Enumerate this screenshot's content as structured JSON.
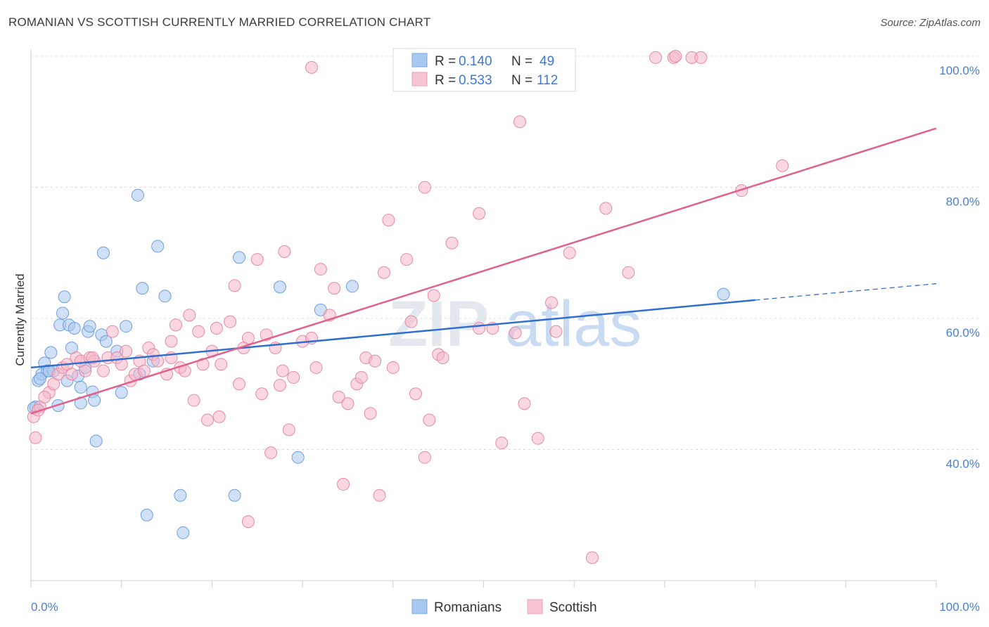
{
  "title": "ROMANIAN VS SCOTTISH CURRENTLY MARRIED CORRELATION CHART",
  "source": "Source: ZipAtlas.com",
  "watermark": {
    "zip": "ZIP",
    "atlas": "atlas"
  },
  "legend_top": {
    "r_label": "R =",
    "n_label": "N =",
    "items": [
      {
        "r": "0.140",
        "n": "49",
        "color": "#a9c8f0"
      },
      {
        "r": "0.533",
        "n": "112",
        "color": "#f7b6c8"
      }
    ]
  },
  "legend_bottom": [
    {
      "label": "Romanians",
      "color": "#a9c8f0"
    },
    {
      "label": "Scottish",
      "color": "#f7b6c8"
    }
  ],
  "chart_data": {
    "type": "scatter",
    "title": "ROMANIAN VS SCOTTISH CURRENTLY MARRIED CORRELATION CHART",
    "xlabel": "",
    "ylabel": "Currently Married",
    "xlim": [
      0,
      100
    ],
    "ylim": [
      20,
      100
    ],
    "x_tick_labels": [
      "0.0%",
      "100.0%"
    ],
    "y_tick_labels": [
      "100.0%",
      "80.0%",
      "60.0%",
      "40.0%"
    ],
    "y_ticks": [
      100,
      80,
      60,
      40
    ],
    "grid": true,
    "legend_position": "top-center",
    "series": [
      {
        "name": "Romanians",
        "color": "#a9c8f0",
        "stroke": "#6f9fdf",
        "trend": {
          "x0": 0,
          "y0": 52.5,
          "x1": 80,
          "y1": 62.8,
          "dash_to_x": 100,
          "dash_to_y": 65.3,
          "color": "#2f6fcf"
        },
        "points": [
          [
            0.5,
            46.5
          ],
          [
            0.8,
            50.5
          ],
          [
            1.2,
            51.5
          ],
          [
            1.5,
            53.2
          ],
          [
            1.8,
            52.0
          ],
          [
            2.2,
            54.8
          ],
          [
            2.5,
            52.0
          ],
          [
            3.0,
            46.7
          ],
          [
            3.2,
            59.0
          ],
          [
            3.5,
            60.8
          ],
          [
            3.7,
            63.3
          ],
          [
            4.2,
            59.0
          ],
          [
            4.0,
            50.5
          ],
          [
            4.5,
            55.5
          ],
          [
            4.8,
            58.5
          ],
          [
            5.2,
            51.2
          ],
          [
            5.5,
            49.5
          ],
          [
            5.5,
            47.1
          ],
          [
            6.0,
            52.5
          ],
          [
            6.3,
            58.0
          ],
          [
            6.5,
            58.8
          ],
          [
            6.8,
            48.8
          ],
          [
            7.0,
            47.5
          ],
          [
            7.2,
            41.3
          ],
          [
            7.8,
            57.5
          ],
          [
            8.0,
            70.0
          ],
          [
            8.3,
            56.5
          ],
          [
            9.5,
            55.0
          ],
          [
            10.0,
            48.7
          ],
          [
            10.5,
            58.8
          ],
          [
            11.8,
            78.8
          ],
          [
            12.0,
            51.5
          ],
          [
            12.3,
            64.6
          ],
          [
            12.8,
            30.0
          ],
          [
            13.5,
            53.5
          ],
          [
            14.0,
            71.0
          ],
          [
            14.8,
            63.4
          ],
          [
            16.5,
            33.0
          ],
          [
            16.8,
            27.3
          ],
          [
            22.5,
            33.0
          ],
          [
            23.0,
            69.3
          ],
          [
            27.5,
            64.8
          ],
          [
            29.5,
            38.8
          ],
          [
            32.0,
            61.3
          ],
          [
            35.5,
            64.9
          ],
          [
            76.5,
            63.7
          ],
          [
            0.3,
            46.3
          ],
          [
            1.0,
            50.8
          ],
          [
            2.0,
            52.0
          ]
        ]
      },
      {
        "name": "Scottish",
        "color": "#f7b6c8",
        "stroke": "#e68aa6",
        "trend": {
          "x0": 0,
          "y0": 45.5,
          "x1": 100,
          "y1": 89.0,
          "color": "#e0618a"
        },
        "points": [
          [
            0.3,
            45.0
          ],
          [
            0.5,
            41.8
          ],
          [
            1.0,
            46.5
          ],
          [
            2.0,
            48.7
          ],
          [
            2.5,
            50.0
          ],
          [
            3.0,
            51.5
          ],
          [
            3.5,
            52.5
          ],
          [
            4.0,
            53.0
          ],
          [
            4.5,
            51.5
          ],
          [
            5.0,
            54.0
          ],
          [
            5.5,
            53.5
          ],
          [
            6.0,
            52.0
          ],
          [
            6.5,
            54.0
          ],
          [
            7.0,
            53.5
          ],
          [
            8.0,
            52.0
          ],
          [
            8.5,
            54.0
          ],
          [
            9.0,
            58.0
          ],
          [
            9.5,
            54.0
          ],
          [
            10.0,
            53.0
          ],
          [
            10.5,
            55.0
          ],
          [
            11.0,
            50.5
          ],
          [
            11.5,
            51.5
          ],
          [
            12.0,
            53.5
          ],
          [
            13.0,
            55.5
          ],
          [
            13.5,
            54.5
          ],
          [
            14.0,
            53.5
          ],
          [
            15.0,
            51.5
          ],
          [
            15.5,
            54.0
          ],
          [
            16.0,
            59.0
          ],
          [
            16.5,
            52.5
          ],
          [
            17.0,
            52.0
          ],
          [
            17.5,
            60.5
          ],
          [
            18.0,
            47.5
          ],
          [
            18.5,
            58.0
          ],
          [
            19.0,
            53.0
          ],
          [
            19.5,
            44.5
          ],
          [
            20.0,
            55.0
          ],
          [
            20.5,
            58.5
          ],
          [
            21.0,
            53.0
          ],
          [
            22.0,
            59.5
          ],
          [
            22.5,
            65.0
          ],
          [
            23.0,
            50.0
          ],
          [
            23.5,
            55.5
          ],
          [
            24.0,
            57.0
          ],
          [
            25.0,
            69.0
          ],
          [
            25.5,
            48.5
          ],
          [
            26.0,
            57.5
          ],
          [
            26.5,
            39.5
          ],
          [
            27.0,
            55.5
          ],
          [
            27.5,
            49.8
          ],
          [
            28.0,
            70.2
          ],
          [
            28.5,
            43.0
          ],
          [
            29.0,
            51.0
          ],
          [
            30.0,
            56.5
          ],
          [
            31.0,
            57.0
          ],
          [
            31.5,
            52.5
          ],
          [
            32.0,
            67.5
          ],
          [
            33.0,
            60.5
          ],
          [
            33.5,
            64.6
          ],
          [
            34.0,
            48.0
          ],
          [
            34.5,
            34.7
          ],
          [
            35.0,
            47.0
          ],
          [
            36.0,
            50.0
          ],
          [
            36.5,
            51.0
          ],
          [
            37.0,
            54.0
          ],
          [
            37.5,
            45.5
          ],
          [
            38.0,
            53.5
          ],
          [
            38.5,
            33.0
          ],
          [
            39.0,
            67.0
          ],
          [
            39.5,
            75.0
          ],
          [
            40.0,
            52.5
          ],
          [
            41.5,
            69.0
          ],
          [
            42.0,
            59.5
          ],
          [
            42.5,
            48.5
          ],
          [
            43.5,
            80.0
          ],
          [
            43.5,
            38.8
          ],
          [
            44.0,
            44.5
          ],
          [
            44.5,
            63.5
          ],
          [
            45.0,
            54.5
          ],
          [
            45.5,
            54.0
          ],
          [
            46.5,
            71.5
          ],
          [
            49.5,
            58.5
          ],
          [
            49.5,
            76.0
          ],
          [
            51.0,
            58.5
          ],
          [
            52.0,
            41.0
          ],
          [
            53.5,
            57.8
          ],
          [
            54.0,
            90.0
          ],
          [
            54.5,
            47.0
          ],
          [
            55.5,
            99.8
          ],
          [
            56.0,
            41.7
          ],
          [
            57.5,
            62.4
          ],
          [
            58.0,
            58.0
          ],
          [
            59.5,
            70.0
          ],
          [
            62.0,
            23.5
          ],
          [
            63.5,
            76.8
          ],
          [
            66.0,
            67.0
          ],
          [
            69.0,
            99.8
          ],
          [
            71.0,
            99.8
          ],
          [
            71.2,
            100.0
          ],
          [
            73.0,
            99.8
          ],
          [
            74.0,
            99.8
          ],
          [
            78.5,
            79.5
          ],
          [
            83.0,
            83.3
          ],
          [
            31.0,
            98.3
          ],
          [
            0.8,
            46.0
          ],
          [
            1.5,
            48.0
          ],
          [
            6.8,
            54.0
          ],
          [
            12.5,
            52.0
          ],
          [
            24.0,
            29.0
          ],
          [
            15.5,
            56.5
          ],
          [
            27.8,
            52.0
          ],
          [
            20.8,
            45.0
          ]
        ]
      }
    ]
  }
}
